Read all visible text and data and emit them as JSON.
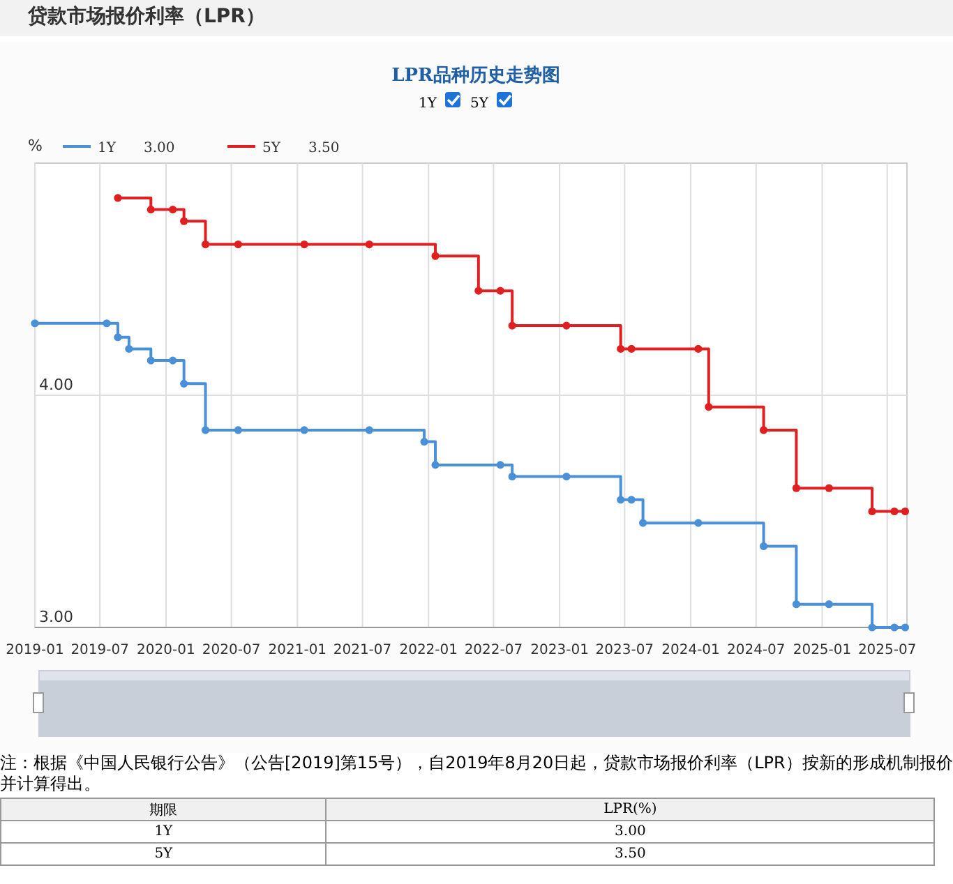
{
  "chart_data": {
    "type": "step",
    "title": "贷款市场报价利率（LPR）",
    "subtitle": "LPR品种历史走势图",
    "ylabel": "%",
    "xlim": [
      "2019-01-01",
      "2025-08-25"
    ],
    "xticks": [
      "2019-01",
      "2019-07",
      "2020-01",
      "2020-07",
      "2021-01",
      "2021-07",
      "2022-01",
      "2022-07",
      "2023-01",
      "2023-07",
      "2024-01",
      "2024-07",
      "2025-01",
      "2025-07"
    ],
    "ylim": [
      3.0,
      5.0
    ],
    "yticks": [
      {
        "value": 3,
        "label": "3.00"
      },
      {
        "value": 4,
        "label": "4.00"
      }
    ],
    "grid": true,
    "legend": "top left",
    "marker": "circle",
    "line_style": "solid",
    "series": [
      {
        "name": "1Y",
        "color": "#4a90d9",
        "x": [
          "2019-01-01",
          "2019-07-20",
          "2019-08-20",
          "2019-09-20",
          "2019-11-20",
          "2020-01-20",
          "2020-02-20",
          "2020-04-20",
          "2020-07-20",
          "2021-01-20",
          "2021-07-20",
          "2021-12-20",
          "2022-01-20",
          "2022-07-20",
          "2022-08-22",
          "2023-01-20",
          "2023-06-20",
          "2023-07-20",
          "2023-08-21",
          "2024-01-22",
          "2024-07-22",
          "2024-10-21",
          "2025-01-20",
          "2025-05-20",
          "2025-07-21",
          "2025-08-20"
        ],
        "values": [
          4.31,
          4.31,
          4.25,
          4.2,
          4.15,
          4.15,
          4.05,
          3.85,
          3.85,
          3.85,
          3.85,
          3.8,
          3.7,
          3.7,
          3.65,
          3.65,
          3.55,
          3.55,
          3.45,
          3.45,
          3.35,
          3.1,
          3.1,
          3.0,
          3.0,
          3.0
        ]
      },
      {
        "name": "5Y",
        "color": "#e02020",
        "x": [
          "2019-08-20",
          "2019-11-20",
          "2020-01-20",
          "2020-02-20",
          "2020-04-20",
          "2020-07-20",
          "2021-01-20",
          "2021-07-20",
          "2022-01-20",
          "2022-05-20",
          "2022-07-20",
          "2022-08-22",
          "2023-01-20",
          "2023-06-20",
          "2023-07-20",
          "2024-01-22",
          "2024-02-20",
          "2024-07-22",
          "2024-10-21",
          "2025-01-20",
          "2025-05-20",
          "2025-07-21",
          "2025-08-20"
        ],
        "values": [
          4.85,
          4.8,
          4.8,
          4.75,
          4.65,
          4.65,
          4.65,
          4.65,
          4.6,
          4.45,
          4.45,
          4.3,
          4.3,
          4.2,
          4.2,
          4.2,
          3.95,
          3.85,
          3.6,
          3.6,
          3.5,
          3.5,
          3.5
        ]
      }
    ],
    "annotations": [
      "注：根据《中国人民银行公告》（公告[2019]第15号），自2019年8月20日起，贷款市场报价利率（LPR）按新的形成机制报价并计算得出。",
      "期限",
      "LPR(%)",
      "1Y",
      "3.00",
      "5Y",
      "3.50"
    ]
  }
}
